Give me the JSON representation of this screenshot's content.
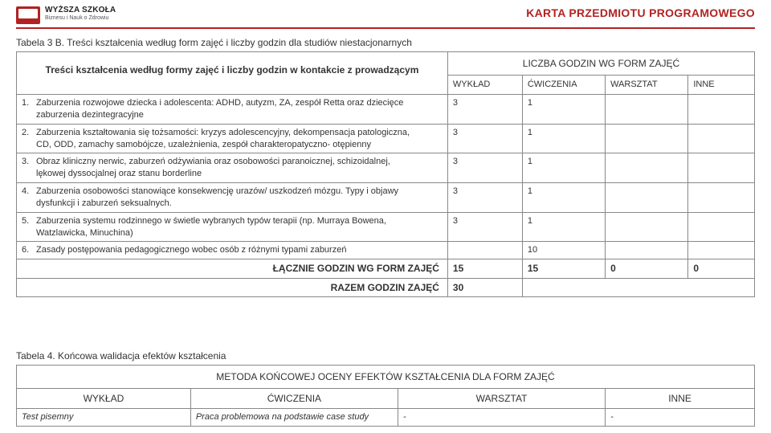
{
  "header": {
    "logo_line1": "WYŻSZA SZKOŁA",
    "logo_line2": "Biznesu i Nauk o Zdrowiu",
    "page_title": "KARTA PRZEDMIOTU PROGRAMOWEGO"
  },
  "table3": {
    "caption": "Tabela 3 B. Treści kształcenia według form zajęć i liczby godzin dla studiów niestacjonarnych",
    "desc_header": "Treści kształcenia według formy zajęć i liczby godzin w kontakcie z prowadzącym",
    "super_header": "LICZBA GODZIN WG FORM ZAJĘĆ",
    "cols": {
      "c1": "WYKŁAD",
      "c2": "ĆWICZENIA",
      "c3": "WARSZTAT",
      "c4": "INNE"
    },
    "rows": [
      {
        "n": "1.",
        "text": "Zaburzenia rozwojowe dziecka i adolescenta: ADHD, autyzm, ZA, zespół Retta oraz dziecięce zaburzenia dezintegracyjne",
        "v": [
          "3",
          "1",
          "",
          ""
        ]
      },
      {
        "n": "2.",
        "text": "Zaburzenia kształtowania się tożsamości: kryzys adolescencyjny, dekompensacja patologiczna, CD, ODD, zamachy samobójcze, uzależnienia, zespół charakteropatyczno- otępienny",
        "v": [
          "3",
          "1",
          "",
          ""
        ]
      },
      {
        "n": "3.",
        "text": "Obraz kliniczny nerwic, zaburzeń odżywiania oraz osobowości paranoicznej, schizoidalnej, lękowej dyssocjalnej oraz stanu borderline",
        "v": [
          "3",
          "1",
          "",
          ""
        ]
      },
      {
        "n": "4.",
        "text": "Zaburzenia osobowości stanowiące konsekwencję urazów/ uszkodzeń mózgu. Typy i objawy dysfunkcji i zaburzeń seksualnych.",
        "v": [
          "3",
          "1",
          "",
          ""
        ]
      },
      {
        "n": "5.",
        "text": "Zaburzenia systemu rodzinnego w świetle wybranych typów terapii (np. Murraya Bowena, Watzlawicka, Minuchina)",
        "v": [
          "3",
          "1",
          "",
          ""
        ]
      },
      {
        "n": "6.",
        "text": "Zasady postępowania pedagogicznego wobec osób z różnymi typami zaburzeń",
        "v": [
          "",
          "10",
          "",
          ""
        ]
      }
    ],
    "total_label": "ŁĄCZNIE GODZIN WG FORM ZAJĘĆ",
    "totals": [
      "15",
      "15",
      "0",
      "0"
    ],
    "razem_label": "RAZEM GODZIN ZAJĘĆ",
    "razem_value": "30"
  },
  "table4": {
    "caption": "Tabela 4. Końcowa walidacja efektów kształcenia",
    "banner": "METODA KOŃCOWEJ OCENY EFEKTÓW KSZTAŁCENIA DLA FORM ZAJĘĆ",
    "cols": {
      "c1": "WYKŁAD",
      "c2": "ĆWICZENIA",
      "c3": "WARSZTAT",
      "c4": "INNE"
    },
    "row": {
      "c1": "Test pisemny",
      "c2": "Praca problemowa na podstawie case study",
      "c3": "-",
      "c4": "-"
    }
  },
  "style": {
    "accent": "#b22222",
    "border": "#888888",
    "text": "#333333",
    "bg": "#ffffff",
    "font_size_body": 11,
    "font_size_header": 14
  }
}
